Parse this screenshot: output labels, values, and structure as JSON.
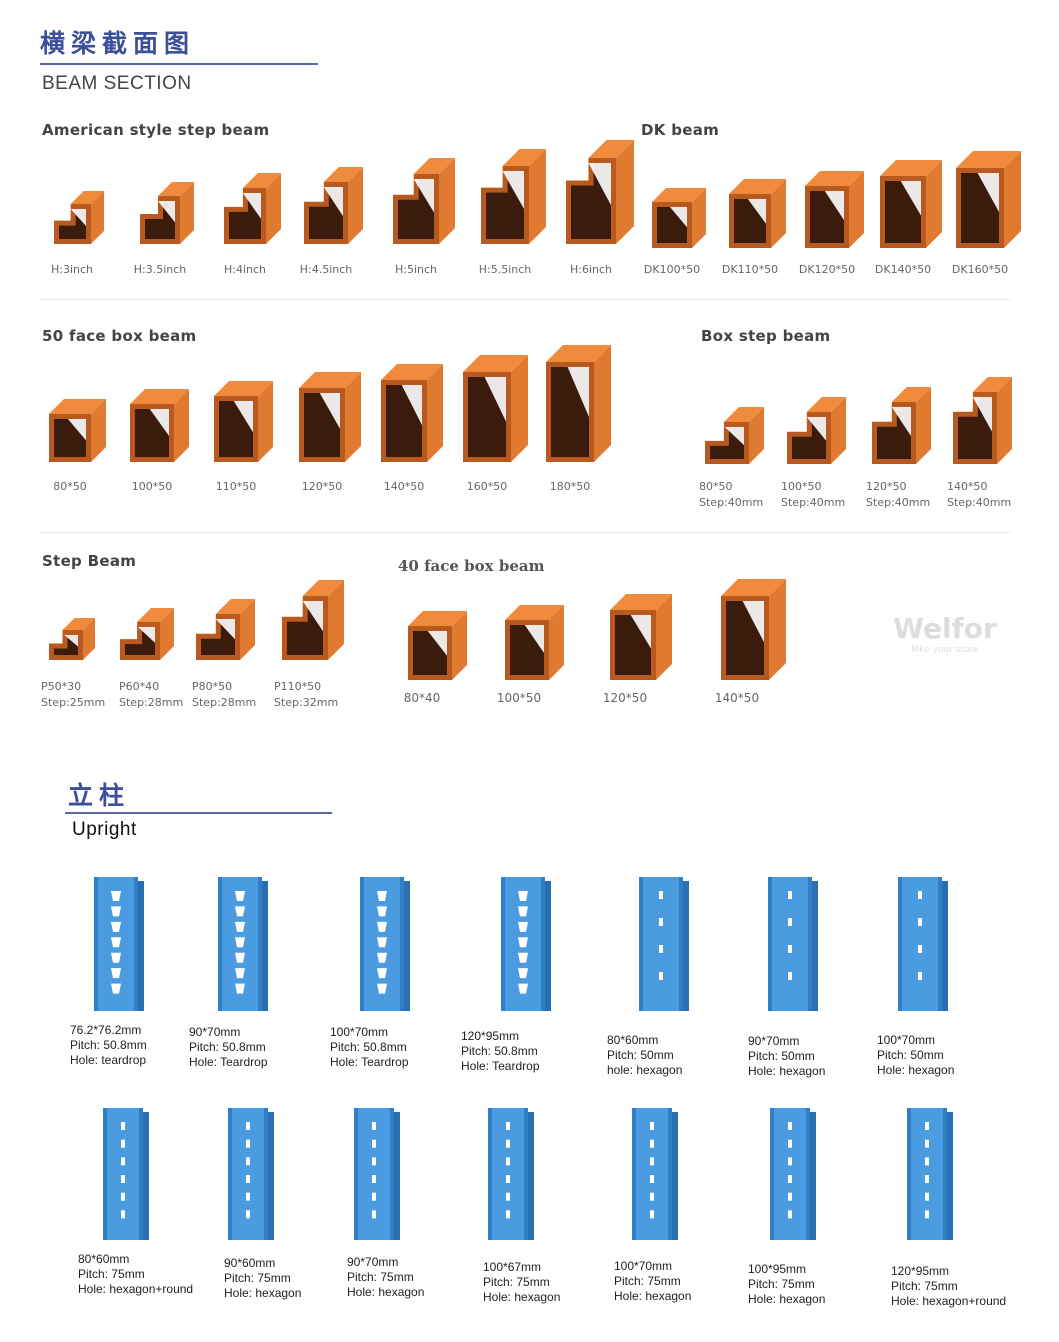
{
  "beam_section": {
    "title_cn": "横梁截面图",
    "title_en": "BEAM SECTION",
    "groups": {
      "american": {
        "title": "American style step beam",
        "items": [
          "H:3inch",
          "H:3.5inch",
          "H:4inch",
          "H:4.5inch",
          "H:5inch",
          "H:5.5inch",
          "H:6inch"
        ]
      },
      "dk": {
        "title": "DK beam",
        "items": [
          "DK100*50",
          "DK110*50",
          "DK120*50",
          "DK140*50",
          "DK160*50"
        ]
      },
      "face50": {
        "title": "50 face box beam",
        "items": [
          "80*50",
          "100*50",
          "110*50",
          "120*50",
          "140*50",
          "160*50",
          "180*50"
        ]
      },
      "boxstep": {
        "title": "Box step beam",
        "items": [
          {
            "size": "80*50",
            "step": "Step:40mm"
          },
          {
            "size": "100*50",
            "step": "Step:40mm"
          },
          {
            "size": "120*50",
            "step": "Step:40mm"
          },
          {
            "size": "140*50",
            "step": "Step:40mm"
          }
        ]
      },
      "step": {
        "title": "Step Beam",
        "items": [
          {
            "size": "P50*30",
            "step": "Step:25mm"
          },
          {
            "size": "P60*40",
            "step": "Step:28mm"
          },
          {
            "size": "P80*50",
            "step": "Step:28mm"
          },
          {
            "size": "P110*50",
            "step": "Step:32mm"
          }
        ]
      },
      "face40": {
        "title": "40 face box beam",
        "items": [
          "80*40",
          "100*50",
          "120*50",
          "140*50"
        ]
      }
    },
    "beam_color": "#e8833a",
    "watermark": {
      "brand": "Welfor",
      "tagline": "Mke your store"
    }
  },
  "upright": {
    "title_cn": "立柱",
    "title_en": "Upright",
    "color": "#3a8fd6",
    "row1": [
      {
        "size": "76.2*76.2mm",
        "pitch": "Pitch: 50.8mm",
        "hole": "Hole: teardrop"
      },
      {
        "size": "90*70mm",
        "pitch": "Pitch: 50.8mm",
        "hole": "Hole: Teardrop"
      },
      {
        "size": "100*70mm",
        "pitch": "Pitch: 50.8mm",
        "hole": "Hole: Teardrop"
      },
      {
        "size": "120*95mm",
        "pitch": "Pitch: 50.8mm",
        "hole": "Hole: Teardrop"
      },
      {
        "size": "80*60mm",
        "pitch": "Pitch: 50mm",
        "hole": "hole: hexagon"
      },
      {
        "size": "90*70mm",
        "pitch": "Pitch: 50mm",
        "hole": "Hole: hexagon"
      },
      {
        "size": "100*70mm",
        "pitch": "Pitch: 50mm",
        "hole": "Hole: hexagon"
      }
    ],
    "row2": [
      {
        "size": "80*60mm",
        "pitch": "Pitch: 75mm",
        "hole": "Hole: hexagon+round"
      },
      {
        "size": "90*60mm",
        "pitch": "Pitch: 75mm",
        "hole": "Hole: hexagon"
      },
      {
        "size": "90*70mm",
        "pitch": "Pitch: 75mm",
        "hole": "Hole: hexagon"
      },
      {
        "size": "100*67mm",
        "pitch": "Pitch: 75mm",
        "hole": "Hole: hexagon"
      },
      {
        "size": "100*70mm",
        "pitch": "Pitch: 75mm",
        "hole": "Hole: hexagon"
      },
      {
        "size": "100*95mm",
        "pitch": "Pitch: 75mm",
        "hole": "Hole: hexagon"
      },
      {
        "size": "120*95mm",
        "pitch": "Pitch: 75mm",
        "hole": "Hole: hexagon+round"
      }
    ]
  }
}
